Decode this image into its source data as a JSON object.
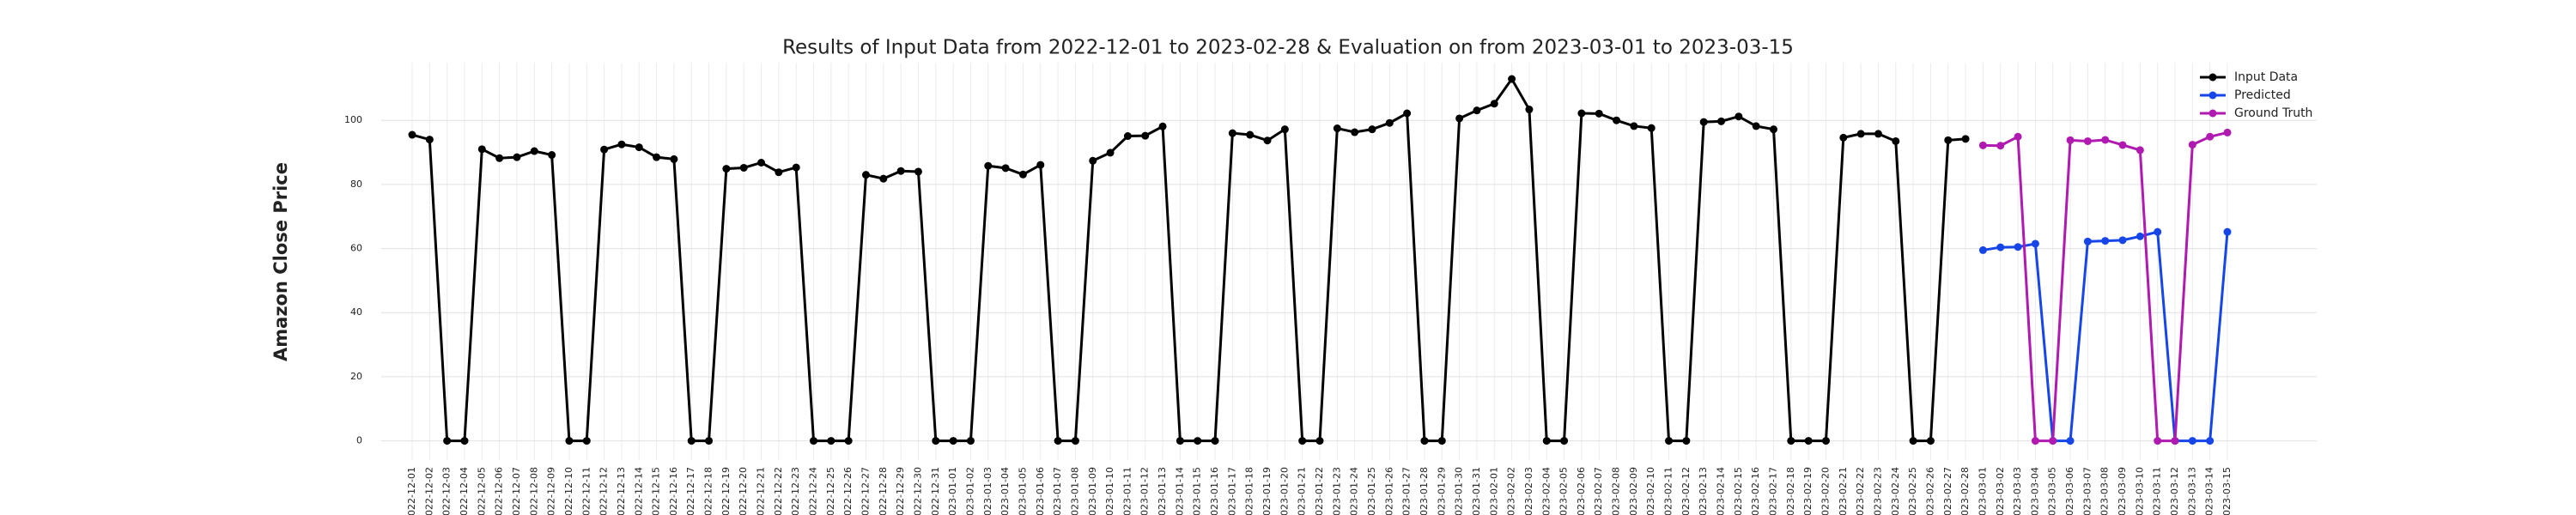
{
  "chart_data": {
    "type": "line",
    "title": "Results of Input Data from 2022-12-01 to 2023-02-28 & Evaluation on from 2023-03-01 to 2023-03-15",
    "y_label": "Amazon Close Price",
    "categories": [
      "2022-12-01",
      "2022-12-02",
      "2022-12-03",
      "2022-12-04",
      "2022-12-05",
      "2022-12-06",
      "2022-12-07",
      "2022-12-08",
      "2022-12-09",
      "2022-12-10",
      "2022-12-11",
      "2022-12-12",
      "2022-12-13",
      "2022-12-14",
      "2022-12-15",
      "2022-12-16",
      "2022-12-17",
      "2022-12-18",
      "2022-12-19",
      "2022-12-20",
      "2022-12-21",
      "2022-12-22",
      "2022-12-23",
      "2022-12-24",
      "2022-12-25",
      "2022-12-26",
      "2022-12-27",
      "2022-12-28",
      "2022-12-29",
      "2022-12-30",
      "2022-12-31",
      "2023-01-01",
      "2023-01-02",
      "2023-01-03",
      "2023-01-04",
      "2023-01-05",
      "2023-01-06",
      "2023-01-07",
      "2023-01-08",
      "2023-01-09",
      "2023-01-10",
      "2023-01-11",
      "2023-01-12",
      "2023-01-13",
      "2023-01-14",
      "2023-01-15",
      "2023-01-16",
      "2023-01-17",
      "2023-01-18",
      "2023-01-19",
      "2023-01-20",
      "2023-01-21",
      "2023-01-22",
      "2023-01-23",
      "2023-01-24",
      "2023-01-25",
      "2023-01-26",
      "2023-01-27",
      "2023-01-28",
      "2023-01-29",
      "2023-01-30",
      "2023-01-31",
      "2023-02-01",
      "2023-02-02",
      "2023-02-03",
      "2023-02-04",
      "2023-02-05",
      "2023-02-06",
      "2023-02-07",
      "2023-02-08",
      "2023-02-09",
      "2023-02-10",
      "2023-02-11",
      "2023-02-12",
      "2023-02-13",
      "2023-02-14",
      "2023-02-15",
      "2023-02-16",
      "2023-02-17",
      "2023-02-18",
      "2023-02-19",
      "2023-02-20",
      "2023-02-21",
      "2023-02-22",
      "2023-02-23",
      "2023-02-24",
      "2023-02-25",
      "2023-02-26",
      "2023-02-27",
      "2023-02-28",
      "2023-03-01",
      "2023-03-02",
      "2023-03-03",
      "2023-03-04",
      "2023-03-05",
      "2023-03-06",
      "2023-03-07",
      "2023-03-08",
      "2023-03-09",
      "2023-03-10",
      "2023-03-11",
      "2023-03-12",
      "2023-03-13",
      "2023-03-14",
      "2023-03-15"
    ],
    "series": [
      {
        "name": "Input Data",
        "color": "#000000",
        "values": [
          95.5,
          94.0,
          0,
          0,
          91.0,
          88.2,
          88.5,
          90.4,
          89.2,
          0,
          0,
          90.9,
          92.5,
          91.6,
          88.5,
          87.9,
          0,
          0,
          84.9,
          85.2,
          86.8,
          83.8,
          85.3,
          0,
          0,
          0,
          83.0,
          81.8,
          84.2,
          84.0,
          0,
          0,
          0,
          85.8,
          85.1,
          83.1,
          86.1,
          0,
          0,
          87.4,
          89.9,
          95.1,
          95.2,
          98.1,
          0,
          0,
          0,
          96.0,
          95.5,
          93.7,
          97.2,
          0,
          0,
          97.5,
          96.3,
          97.2,
          99.2,
          102.2,
          0,
          0,
          100.6,
          103.1,
          105.2,
          112.9,
          103.4,
          0,
          0,
          102.2,
          102.1,
          100.0,
          98.2,
          97.6,
          0,
          0,
          99.5,
          99.7,
          101.2,
          98.2,
          97.2,
          0,
          0,
          0,
          94.6,
          95.8,
          95.8,
          93.5,
          0,
          0,
          93.8,
          94.2,
          null,
          null,
          null,
          null,
          null,
          null,
          null,
          null,
          null,
          null,
          null,
          null,
          null,
          null,
          null
        ]
      },
      {
        "name": "Predicted",
        "color": "#1746e8",
        "values": [
          null,
          null,
          null,
          null,
          null,
          null,
          null,
          null,
          null,
          null,
          null,
          null,
          null,
          null,
          null,
          null,
          null,
          null,
          null,
          null,
          null,
          null,
          null,
          null,
          null,
          null,
          null,
          null,
          null,
          null,
          null,
          null,
          null,
          null,
          null,
          null,
          null,
          null,
          null,
          null,
          null,
          null,
          null,
          null,
          null,
          null,
          null,
          null,
          null,
          null,
          null,
          null,
          null,
          null,
          null,
          null,
          null,
          null,
          null,
          null,
          null,
          null,
          null,
          null,
          null,
          null,
          null,
          null,
          null,
          null,
          null,
          null,
          null,
          null,
          null,
          null,
          null,
          null,
          null,
          null,
          null,
          null,
          null,
          null,
          null,
          null,
          null,
          null,
          null,
          null,
          59.5,
          60.4,
          60.5,
          61.5,
          0,
          0,
          62.2,
          62.4,
          62.6,
          63.8,
          65.2,
          0,
          0,
          0,
          65.2
        ]
      },
      {
        "name": "Ground Truth",
        "color": "#b01ab0",
        "values": [
          null,
          null,
          null,
          null,
          null,
          null,
          null,
          null,
          null,
          null,
          null,
          null,
          null,
          null,
          null,
          null,
          null,
          null,
          null,
          null,
          null,
          null,
          null,
          null,
          null,
          null,
          null,
          null,
          null,
          null,
          null,
          null,
          null,
          null,
          null,
          null,
          null,
          null,
          null,
          null,
          null,
          null,
          null,
          null,
          null,
          null,
          null,
          null,
          null,
          null,
          null,
          null,
          null,
          null,
          null,
          null,
          null,
          null,
          null,
          null,
          null,
          null,
          null,
          null,
          null,
          null,
          null,
          null,
          null,
          null,
          null,
          null,
          null,
          null,
          null,
          null,
          null,
          null,
          null,
          null,
          null,
          null,
          null,
          null,
          null,
          null,
          null,
          null,
          null,
          null,
          92.2,
          92.1,
          94.9,
          0,
          0,
          93.8,
          93.5,
          93.9,
          92.3,
          90.7,
          0,
          0,
          92.4,
          94.9,
          96.2
        ]
      }
    ],
    "ylim": [
      -6,
      118
    ],
    "yticks": [
      0,
      20,
      40,
      60,
      80,
      100
    ],
    "grid": true,
    "legend": "upper right"
  }
}
